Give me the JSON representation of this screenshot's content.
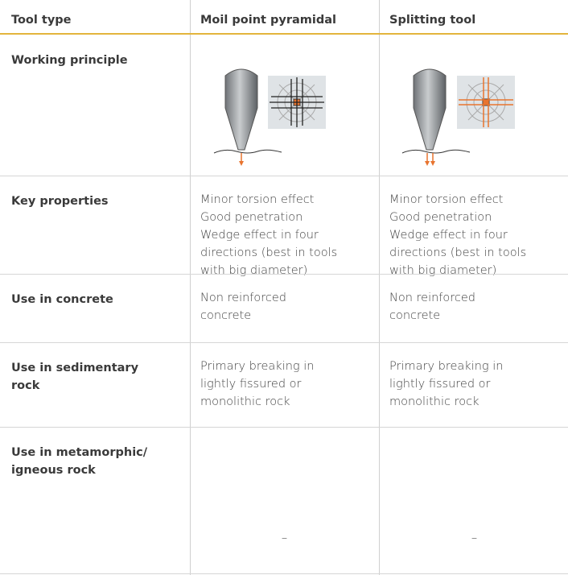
{
  "table": {
    "header": [
      "Tool type",
      "Moil point pyramidal",
      "Splitting tool"
    ],
    "rows": [
      {
        "label": [
          "Working principle"
        ]
      },
      {
        "label": [
          "Key properties"
        ],
        "cells": [
          [
            "Minor torsion effect",
            "Good penetration",
            "Wedge effect in four",
            "directions (best in tools",
            "with big diameter)"
          ],
          [
            "Minor torsion effect",
            "Good penetration",
            "Wedge effect in four",
            "directions (best in tools",
            "with big diameter)"
          ]
        ]
      },
      {
        "label": [
          "Use in concrete"
        ],
        "cells": [
          [
            "Non reinforced",
            "concrete"
          ],
          [
            "Non reinforced",
            "concrete"
          ]
        ]
      },
      {
        "label": [
          "Use in sedimentary",
          "rock"
        ],
        "cells": [
          [
            "Primary breaking in",
            "lightly fissured or",
            "monolithic rock"
          ],
          [
            "Primary breaking in",
            "lightly fissured or",
            "monolithic rock"
          ]
        ]
      },
      {
        "label": [
          "Use in metamorphic/",
          "igneous rock"
        ],
        "center": [
          [
            "–"
          ],
          [
            "–"
          ]
        ]
      }
    ]
  }
}
